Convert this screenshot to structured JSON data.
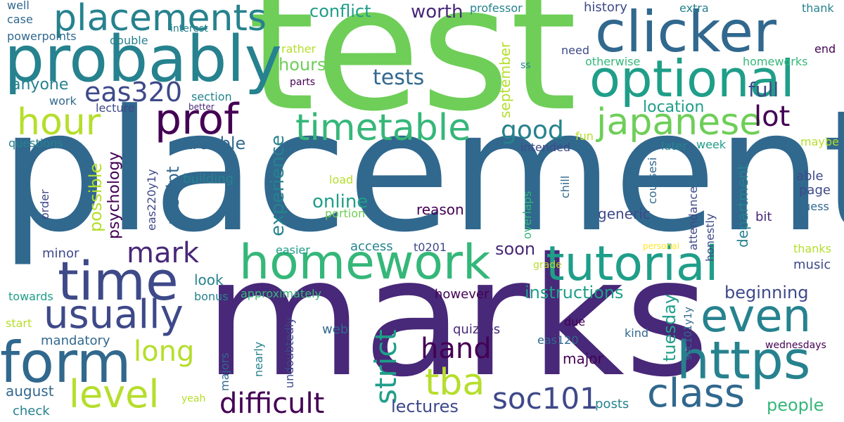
{
  "colors": {
    "background": "#ffffff",
    "palette": [
      "#440154",
      "#482878",
      "#3e4989",
      "#31688e",
      "#26828e",
      "#1f9e89",
      "#35b779",
      "#6ece58",
      "#b5de2b",
      "#fde725"
    ]
  },
  "words": [
    {
      "text": "placement",
      "color": "#31688e"
    },
    {
      "text": "test",
      "color": "#6ece58"
    },
    {
      "text": "marks",
      "color": "#482878"
    },
    {
      "text": "probably",
      "color": "#26828e"
    },
    {
      "text": "clicker",
      "color": "#31688e"
    },
    {
      "text": "optional",
      "color": "#1f9e89"
    },
    {
      "text": "placements",
      "color": "#26828e"
    },
    {
      "text": "homework",
      "color": "#35b779"
    },
    {
      "text": "tutorial",
      "color": "#1f9e89"
    },
    {
      "text": "time",
      "color": "#3e4989"
    },
    {
      "text": "form",
      "color": "#31688e"
    },
    {
      "text": "even",
      "color": "#26828e"
    },
    {
      "text": "https",
      "color": "#26828e"
    },
    {
      "text": "timetable",
      "color": "#35b779"
    },
    {
      "text": "japanese",
      "color": "#6ece58"
    },
    {
      "text": "prof",
      "color": "#440154"
    },
    {
      "text": "usually",
      "color": "#3e4989"
    },
    {
      "text": "class",
      "color": "#31688e"
    },
    {
      "text": "level",
      "color": "#b5de2b"
    },
    {
      "text": "difficult",
      "color": "#440154"
    },
    {
      "text": "soc101",
      "color": "#3e4989"
    },
    {
      "text": "tba",
      "color": "#b5de2b"
    },
    {
      "text": "hour",
      "color": "#b5de2b"
    },
    {
      "text": "mark",
      "color": "#482878"
    },
    {
      "text": "long",
      "color": "#b5de2b"
    },
    {
      "text": "hand",
      "color": "#440154"
    },
    {
      "text": "strict",
      "color": "#1f9e89"
    },
    {
      "text": "eas320",
      "color": "#3e4989"
    },
    {
      "text": "lot",
      "color": "#440154"
    },
    {
      "text": "good",
      "color": "#26828e"
    },
    {
      "text": "tests",
      "color": "#31688e"
    },
    {
      "text": "conflict",
      "color": "#1f9e89"
    },
    {
      "text": "worth",
      "color": "#482878"
    },
    {
      "text": "full",
      "color": "#3e4989"
    },
    {
      "text": "hours",
      "color": "#6ece58"
    },
    {
      "text": "anyone",
      "color": "#26828e"
    },
    {
      "text": "location",
      "color": "#1f9e89"
    },
    {
      "text": "trouble",
      "color": "#31688e"
    },
    {
      "text": "possible",
      "color": "#b5de2b"
    },
    {
      "text": "psychology",
      "color": "#440154"
    },
    {
      "text": "receipt",
      "color": "#31688e"
    },
    {
      "text": "experience",
      "color": "#26828e"
    },
    {
      "text": "online",
      "color": "#1f9e89"
    },
    {
      "text": "reason",
      "color": "#440154"
    },
    {
      "text": "soon",
      "color": "#482878"
    },
    {
      "text": "instructions",
      "color": "#1f9e89"
    },
    {
      "text": "beginning",
      "color": "#3e4989"
    },
    {
      "text": "tuesday",
      "color": "#1f9e89"
    },
    {
      "text": "lectures",
      "color": "#3e4989"
    },
    {
      "text": "people",
      "color": "#35b779"
    },
    {
      "text": "september",
      "color": "#b5de2b"
    },
    {
      "text": "department",
      "color": "#26828e"
    },
    {
      "text": "generic",
      "color": "#3e4989"
    },
    {
      "text": "music",
      "color": "#3e4989"
    },
    {
      "text": "look",
      "color": "#26828e"
    },
    {
      "text": "major",
      "color": "#440154"
    },
    {
      "text": "mandatory",
      "color": "#31688e"
    },
    {
      "text": "august",
      "color": "#31688e"
    },
    {
      "text": "check",
      "color": "#26828e"
    },
    {
      "text": "posts",
      "color": "#26828e"
    },
    {
      "text": "web",
      "color": "#31688e"
    },
    {
      "text": "quizzes",
      "color": "#482878"
    },
    {
      "text": "however",
      "color": "#440154"
    },
    {
      "text": "access",
      "color": "#26828e"
    },
    {
      "text": "t0201",
      "color": "#3e4989"
    },
    {
      "text": "approximately",
      "color": "#35b779"
    },
    {
      "text": "minor",
      "color": "#3e4989"
    },
    {
      "text": "towards",
      "color": "#1f9e89"
    },
    {
      "text": "bonus",
      "color": "#26828e"
    },
    {
      "text": "start",
      "color": "#b5de2b"
    },
    {
      "text": "yeah",
      "color": "#b5de2b"
    },
    {
      "text": "due",
      "color": "#440154"
    },
    {
      "text": "eas120",
      "color": "#31688e"
    },
    {
      "text": "kind",
      "color": "#31688e"
    },
    {
      "text": "wednesdays",
      "color": "#440154"
    },
    {
      "text": "soc101y1y",
      "color": "#31688e"
    },
    {
      "text": "honestly",
      "color": "#3e4989"
    },
    {
      "text": "attendance",
      "color": "#3e4989"
    },
    {
      "text": "thanks",
      "color": "#b5de2b"
    },
    {
      "text": "grade",
      "color": "#b5de2b"
    },
    {
      "text": "personal",
      "color": "#fde725"
    },
    {
      "text": "easier",
      "color": "#1f9e89"
    },
    {
      "text": "overlaps",
      "color": "#35b779"
    },
    {
      "text": "chill",
      "color": "#31688e"
    },
    {
      "text": "coursesi",
      "color": "#31688e"
    },
    {
      "text": "bit",
      "color": "#482878"
    },
    {
      "text": "guess",
      "color": "#31688e"
    },
    {
      "text": "page",
      "color": "#3e4989"
    },
    {
      "text": "able",
      "color": "#3e4989"
    },
    {
      "text": "maybe",
      "color": "#b5de2b"
    },
    {
      "text": "later",
      "color": "#26828e"
    },
    {
      "text": "week",
      "color": "#1f9e89"
    },
    {
      "text": "intended",
      "color": "#3e4989"
    },
    {
      "text": "fun",
      "color": "#b5de2b"
    },
    {
      "text": "load",
      "color": "#b5de2b"
    },
    {
      "text": "portion",
      "color": "#6ece58"
    },
    {
      "text": "building",
      "color": "#26828e"
    },
    {
      "text": "order",
      "color": "#3e4989"
    },
    {
      "text": "eas220y1y",
      "color": "#3e4989"
    },
    {
      "text": "questions",
      "color": "#26828e"
    },
    {
      "text": "work",
      "color": "#31688e"
    },
    {
      "text": "lecture",
      "color": "#3e4989"
    },
    {
      "text": "section",
      "color": "#26828e"
    },
    {
      "text": "better",
      "color": "#482878"
    },
    {
      "text": "case",
      "color": "#31688e"
    },
    {
      "text": "powerpoints",
      "color": "#31688e"
    },
    {
      "text": "well",
      "color": "#31688e"
    },
    {
      "text": "interest",
      "color": "#26828e"
    },
    {
      "text": "double",
      "color": "#26828e"
    },
    {
      "text": "rather",
      "color": "#b5de2b"
    },
    {
      "text": "parts",
      "color": "#440154"
    },
    {
      "text": "professor",
      "color": "#26828e"
    },
    {
      "text": "history",
      "color": "#3e4989"
    },
    {
      "text": "extra",
      "color": "#26828e"
    },
    {
      "text": "thank",
      "color": "#26828e"
    },
    {
      "text": "need",
      "color": "#3e4989"
    },
    {
      "text": "otherwise",
      "color": "#35b779"
    },
    {
      "text": "end",
      "color": "#440154"
    },
    {
      "text": "homeworks",
      "color": "#35b779"
    },
    {
      "text": "ss",
      "color": "#26828e"
    },
    {
      "text": "nearly",
      "color": "#26828e"
    },
    {
      "text": "majors",
      "color": "#31688e"
    },
    {
      "text": "undoubtedly",
      "color": "#3e4989"
    }
  ]
}
